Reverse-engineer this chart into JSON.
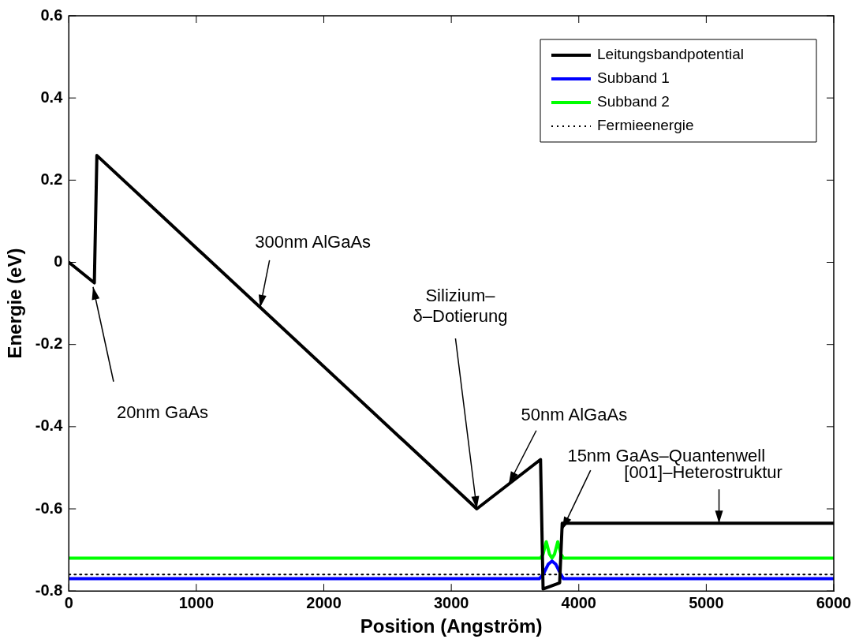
{
  "chart_data": {
    "type": "line",
    "xlabel": "Position (Angström)",
    "ylabel": "Energie (eV)",
    "xlim": [
      0,
      6000
    ],
    "xticks": [
      0,
      1000,
      2000,
      3000,
      4000,
      5000,
      6000
    ],
    "ylim": [
      -0.8,
      0.6
    ],
    "yticks": [
      -0.8,
      -0.6,
      -0.4,
      -0.2,
      0,
      0.2,
      0.4,
      0.6
    ],
    "grid": false,
    "legend": "top right",
    "marker": "none",
    "series": [
      {
        "name": "Leitungsbandpotential",
        "color": "#000000",
        "line_style": "solid",
        "x": [
          0,
          200,
          220,
          3200,
          3700,
          3720,
          3850,
          3870,
          6000
        ],
        "values": [
          0,
          -0.05,
          0.26,
          -0.6,
          -0.48,
          -0.795,
          -0.78,
          -0.635,
          -0.635
        ]
      },
      {
        "name": "Subband 1",
        "color": "#0000ff",
        "line_style": "solid",
        "x": [
          0,
          3690,
          3720,
          3760,
          3790,
          3820,
          3860,
          3880,
          6000
        ],
        "values": [
          -0.77,
          -0.77,
          -0.76,
          -0.735,
          -0.727,
          -0.735,
          -0.76,
          -0.77,
          -0.77
        ]
      },
      {
        "name": "Subband 2",
        "color": "#00ff00",
        "line_style": "solid",
        "x": [
          0,
          3700,
          3720,
          3745,
          3770,
          3790,
          3810,
          3835,
          3860,
          3880,
          6000
        ],
        "values": [
          -0.72,
          -0.72,
          -0.71,
          -0.68,
          -0.71,
          -0.72,
          -0.71,
          -0.68,
          -0.71,
          -0.72,
          -0.72
        ]
      },
      {
        "name": "Fermieenergie",
        "color": "#000000",
        "line_style": "dotted",
        "x": [
          0,
          6000
        ],
        "values": [
          -0.76,
          -0.76
        ]
      }
    ],
    "annotations": [
      {
        "text": "20nm GaAs",
        "x": 190,
        "y": -0.06
      },
      {
        "text": "300nm AlGaAs",
        "x": 1500,
        "y": -0.11
      },
      {
        "text": "Silizium–\nδ–Dotierung",
        "x": 3200,
        "y": -0.6
      },
      {
        "text": "50nm AlGaAs",
        "x": 3450,
        "y": -0.54
      },
      {
        "text": "15nm GaAs–Quantenwell",
        "x": 3870,
        "y": -0.65
      },
      {
        "text": "[001]–Heterostruktur",
        "x": 5100,
        "y": -0.635
      }
    ]
  }
}
